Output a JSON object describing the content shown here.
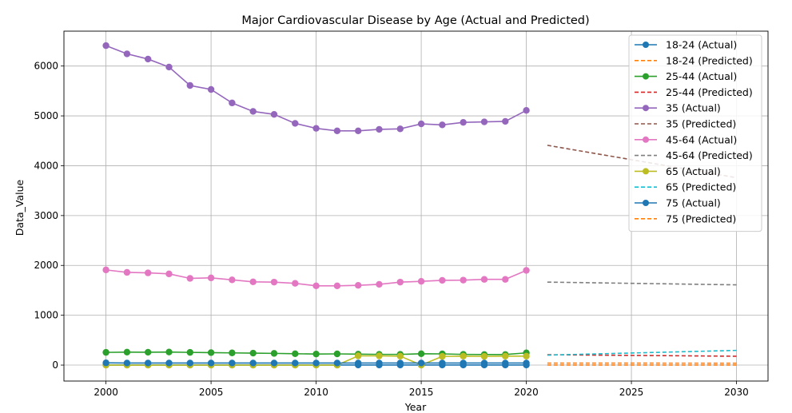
{
  "chart_data": {
    "type": "line",
    "title": "Major Cardiovascular Disease by Age (Actual and Predicted)",
    "xlabel": "Year",
    "ylabel": "Data_Value",
    "xlim": [
      1998,
      2031.5
    ],
    "ylim": [
      -320,
      6700
    ],
    "xticks": [
      2000,
      2005,
      2010,
      2015,
      2020,
      2025,
      2030
    ],
    "yticks": [
      0,
      1000,
      2000,
      3000,
      4000,
      5000,
      6000
    ],
    "grid": true,
    "legend_position": "top-right",
    "actual_years": [
      2000,
      2001,
      2002,
      2003,
      2004,
      2005,
      2006,
      2007,
      2008,
      2009,
      2010,
      2011,
      2012,
      2013,
      2014,
      2015,
      2016,
      2017,
      2018,
      2019,
      2020
    ],
    "predicted_years": [
      2021,
      2030
    ],
    "series": [
      {
        "name": "18-24 (Actual)",
        "kind": "actual",
        "color": "#1f77b4",
        "values": [
          2,
          2,
          2,
          2,
          2,
          2,
          2,
          2,
          2,
          2,
          2,
          2,
          2,
          2,
          2,
          2,
          2,
          2,
          2,
          2,
          2
        ]
      },
      {
        "name": "18-24 (Predicted)",
        "kind": "predicted",
        "color": "#ff7f0e",
        "values": [
          2,
          2
        ]
      },
      {
        "name": "25-44 (Actual)",
        "kind": "actual",
        "color": "#2ca02c",
        "values": [
          255,
          260,
          258,
          262,
          255,
          250,
          245,
          240,
          235,
          228,
          222,
          225,
          220,
          215,
          215,
          228,
          225,
          215,
          212,
          212,
          245
        ]
      },
      {
        "name": "25-44 (Predicted)",
        "kind": "predicted",
        "color": "#d62728",
        "values": [
          208,
          178
        ]
      },
      {
        "name": "35 (Actual)",
        "kind": "actual",
        "color": "#9467bd",
        "values": [
          6410,
          6245,
          6140,
          5980,
          5610,
          5530,
          5260,
          5090,
          5030,
          4850,
          4750,
          4700,
          4700,
          4730,
          4740,
          4840,
          4820,
          4870,
          4880,
          4890,
          5110
        ]
      },
      {
        "name": "35 (Predicted)",
        "kind": "predicted",
        "color": "#8c564b",
        "values": [
          4410,
          3760
        ]
      },
      {
        "name": "45-64 (Actual)",
        "kind": "actual",
        "color": "#e377c2",
        "values": [
          1910,
          1860,
          1850,
          1830,
          1740,
          1750,
          1710,
          1670,
          1665,
          1640,
          1590,
          1590,
          1600,
          1620,
          1665,
          1680,
          1700,
          1705,
          1720,
          1720,
          1900
        ]
      },
      {
        "name": "45-64 (Predicted)",
        "kind": "predicted",
        "color": "#7f7f7f",
        "values": [
          1665,
          1610
        ]
      },
      {
        "name": "65 (Actual)",
        "kind": "actual",
        "color": "#bcbd22",
        "values": [
          0,
          0,
          0,
          0,
          0,
          0,
          0,
          0,
          0,
          0,
          0,
          0,
          185,
          185,
          180,
          0,
          175,
          180,
          175,
          180,
          180
        ]
      },
      {
        "name": "65 (Predicted)",
        "kind": "predicted",
        "color": "#17becf",
        "values": [
          200,
          295
        ]
      },
      {
        "name": "75 (Actual)",
        "kind": "actual",
        "color": "#1f77b4",
        "values": [
          45,
          42,
          42,
          42,
          42,
          42,
          42,
          42,
          42,
          42,
          42,
          42,
          42,
          42,
          42,
          42,
          42,
          42,
          42,
          42,
          42
        ]
      },
      {
        "name": "75 (Predicted)",
        "kind": "predicted",
        "color": "#ff7f0e",
        "values": [
          40,
          38
        ]
      }
    ]
  }
}
